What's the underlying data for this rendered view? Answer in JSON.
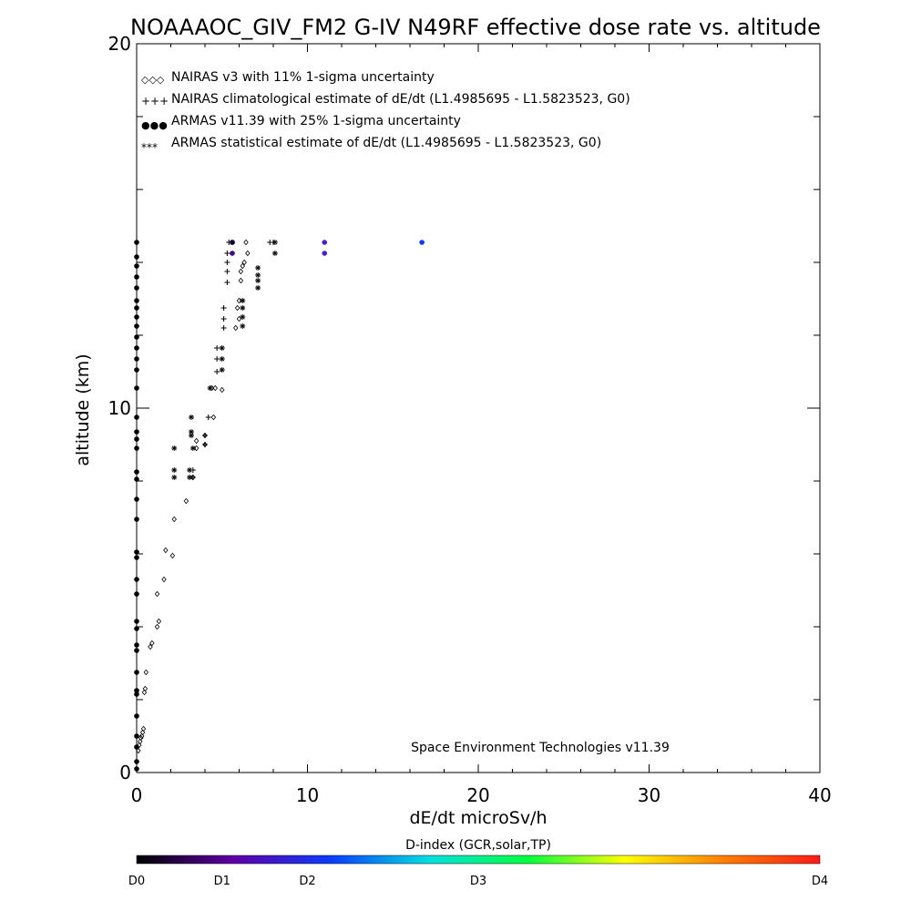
{
  "chart_data": {
    "type": "scatter",
    "title": "NOAAAOC_GIV_FM2 G-IV   N49RF  effective dose rate vs. altitude",
    "xlabel": "dE/dt microSv/h",
    "ylabel": "altitude (km)",
    "xlim": [
      0,
      40
    ],
    "ylim": [
      0,
      20
    ],
    "x_ticks": [
      "0",
      "10",
      "20",
      "30",
      "40"
    ],
    "y_ticks": [
      "0",
      "10",
      "20"
    ],
    "grid": false,
    "legend_position": "top-left",
    "legend": [
      {
        "marker": "◇◇◇",
        "label": "NAIRAS v3 with 11% 1-sigma uncertainty",
        "color": "#000000"
      },
      {
        "marker": "+++",
        "label": "NAIRAS climatological estimate of dE/dt (L1.4985695 - L1.5823523, G0)",
        "color": "#000000"
      },
      {
        "marker": "●●●",
        "label": "ARMAS v11.39 with 25% 1-sigma uncertainty",
        "color": "#1a2ee6"
      },
      {
        "marker": "***",
        "label": "ARMAS statistical estimate of dE/dt (L1.4985695 - L1.5823523, G0)",
        "color": "#000000"
      }
    ],
    "credit": "Space Environment Technologies v11.39",
    "colorbar": {
      "title": "D-index (GCR,solar,TP)",
      "labels": [
        {
          "text": "D0",
          "value": 0
        },
        {
          "text": "D1",
          "value": 0.5
        },
        {
          "text": "D2",
          "value": 1
        },
        {
          "text": "D3",
          "value": 2
        },
        {
          "text": "D4",
          "value": 4
        }
      ],
      "colors": [
        "#000000",
        "#6000a8",
        "#0a3cff",
        "#00e0e0",
        "#00ff40",
        "#ffff00",
        "#ff8000",
        "#ff1a1a"
      ]
    },
    "series": [
      {
        "name": "NAIRAS v3 with 11% 1-sigma uncertainty",
        "marker": "diamond",
        "points": [
          [
            0.1,
            0.6
          ],
          [
            0.15,
            0.75
          ],
          [
            0.2,
            0.85
          ],
          [
            0.25,
            0.95
          ],
          [
            0.3,
            1.0
          ],
          [
            0.35,
            1.1
          ],
          [
            0.4,
            1.2
          ],
          [
            0.45,
            2.2
          ],
          [
            0.5,
            2.3
          ],
          [
            0.55,
            2.75
          ],
          [
            0.8,
            3.45
          ],
          [
            0.9,
            3.55
          ],
          [
            1.2,
            4.0
          ],
          [
            1.3,
            4.15
          ],
          [
            1.2,
            4.9
          ],
          [
            1.6,
            5.3
          ],
          [
            2.1,
            5.95
          ],
          [
            1.7,
            6.1
          ],
          [
            2.2,
            6.95
          ],
          [
            2.9,
            7.45
          ],
          [
            3.3,
            8.1
          ],
          [
            3.5,
            8.9
          ],
          [
            3.5,
            9.1
          ],
          [
            4.0,
            9.0
          ],
          [
            4.0,
            9.25
          ],
          [
            4.5,
            9.75
          ],
          [
            4.4,
            10.55
          ],
          [
            4.6,
            10.55
          ],
          [
            5.0,
            10.5
          ],
          [
            5.8,
            12.2
          ],
          [
            6.0,
            12.45
          ],
          [
            5.9,
            12.75
          ],
          [
            6.0,
            12.95
          ],
          [
            6.1,
            13.5
          ],
          [
            6.1,
            13.75
          ],
          [
            6.2,
            13.9
          ],
          [
            6.3,
            14.0
          ],
          [
            6.5,
            14.25
          ],
          [
            6.4,
            14.55
          ]
        ]
      },
      {
        "name": "NAIRAS climatological estimate of dE/dt (L1.4985695 - L1.5823523, G0)",
        "marker": "plus",
        "points": [
          [
            3.3,
            8.1
          ],
          [
            3.3,
            8.3
          ],
          [
            4.0,
            9.0
          ],
          [
            4.0,
            9.25
          ],
          [
            4.2,
            9.75
          ],
          [
            4.7,
            11.0
          ],
          [
            4.7,
            11.35
          ],
          [
            4.7,
            11.65
          ],
          [
            5.1,
            12.2
          ],
          [
            5.1,
            12.45
          ],
          [
            5.1,
            12.75
          ],
          [
            5.3,
            13.45
          ],
          [
            5.3,
            13.75
          ],
          [
            5.3,
            14.0
          ],
          [
            5.3,
            14.25
          ],
          [
            5.4,
            14.55
          ],
          [
            7.8,
            14.55
          ],
          [
            8.0,
            14.55
          ]
        ]
      },
      {
        "name": "ARMAS v11.39 with 25% 1-sigma uncertainty",
        "marker": "dot",
        "points": [
          [
            0,
            0.1,
            0
          ],
          [
            0,
            0.3,
            0
          ],
          [
            0,
            0.7,
            0
          ],
          [
            0,
            1.0,
            0
          ],
          [
            0,
            1.55,
            0
          ],
          [
            0,
            2.15,
            0
          ],
          [
            0,
            2.25,
            0
          ],
          [
            0,
            2.75,
            0
          ],
          [
            0,
            3.35,
            0
          ],
          [
            0,
            3.5,
            0
          ],
          [
            0,
            3.95,
            0
          ],
          [
            0,
            4.15,
            0
          ],
          [
            0,
            4.9,
            0
          ],
          [
            0,
            5.3,
            0
          ],
          [
            0,
            5.9,
            0
          ],
          [
            0,
            6.05,
            0
          ],
          [
            0,
            6.95,
            0
          ],
          [
            0,
            7.5,
            0
          ],
          [
            0,
            8.05,
            0
          ],
          [
            0,
            8.25,
            0
          ],
          [
            0,
            8.9,
            0
          ],
          [
            0,
            9.15,
            0
          ],
          [
            0,
            9.35,
            0
          ],
          [
            0,
            9.75,
            0
          ],
          [
            0,
            10.55,
            0
          ],
          [
            0,
            11.05,
            0
          ],
          [
            0,
            11.35,
            0
          ],
          [
            0,
            11.65,
            0
          ],
          [
            0,
            11.95,
            0
          ],
          [
            0,
            12.25,
            0
          ],
          [
            0,
            12.5,
            0
          ],
          [
            0,
            12.75,
            0
          ],
          [
            0,
            12.95,
            0
          ],
          [
            0,
            13.3,
            0
          ],
          [
            0,
            13.6,
            0
          ],
          [
            0,
            13.9,
            0
          ],
          [
            0,
            14.15,
            0
          ],
          [
            0,
            14.55,
            0
          ],
          [
            5.6,
            14.25,
            0.5
          ],
          [
            5.6,
            14.55,
            0.5
          ],
          [
            11.0,
            14.25,
            0.7
          ],
          [
            11.0,
            14.55,
            0.7
          ],
          [
            16.7,
            14.55,
            1.0
          ]
        ]
      },
      {
        "name": "ARMAS statistical estimate of dE/dt (L1.4985695 - L1.5823523, G0)",
        "marker": "asterisk",
        "points": [
          [
            2.2,
            8.1
          ],
          [
            2.2,
            8.3
          ],
          [
            2.2,
            8.9
          ],
          [
            3.1,
            8.1
          ],
          [
            3.1,
            8.3
          ],
          [
            3.3,
            8.9
          ],
          [
            3.2,
            9.25
          ],
          [
            3.2,
            9.35
          ],
          [
            3.2,
            9.75
          ],
          [
            4.3,
            10.55
          ],
          [
            5.0,
            11.05
          ],
          [
            5.0,
            11.35
          ],
          [
            5.0,
            11.65
          ],
          [
            6.2,
            12.25
          ],
          [
            6.2,
            12.5
          ],
          [
            6.2,
            12.75
          ],
          [
            6.2,
            12.95
          ],
          [
            7.1,
            13.3
          ],
          [
            7.1,
            13.5
          ],
          [
            7.1,
            13.65
          ],
          [
            7.1,
            13.85
          ],
          [
            5.6,
            14.55
          ],
          [
            8.1,
            14.55
          ],
          [
            8.1,
            14.25
          ]
        ]
      }
    ]
  }
}
